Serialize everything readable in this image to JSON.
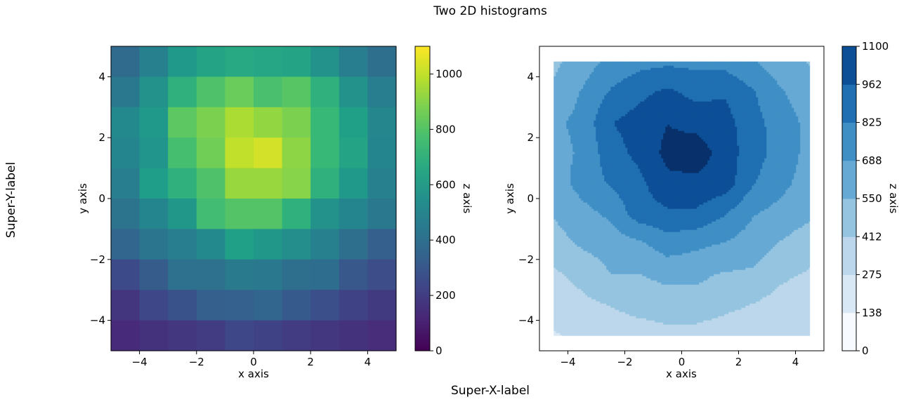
{
  "figure": {
    "suptitle": "Two 2D histograms",
    "supxlabel": "Super-X-label",
    "supylabel": "Super-Y-label"
  },
  "chart_data": [
    {
      "type": "heatmap",
      "title": "",
      "xlabel": "x axis",
      "ylabel": "y axis",
      "colorbar_label": "z axis",
      "colormap": "viridis",
      "xlim": [
        -5,
        5
      ],
      "ylim": [
        -5,
        5
      ],
      "x_ticks": [
        -4,
        -2,
        0,
        2,
        4
      ],
      "y_ticks": [
        -4,
        -2,
        0,
        2,
        4
      ],
      "x_edges": [
        -5,
        -4,
        -3,
        -2,
        -1,
        0,
        1,
        2,
        3,
        4,
        5
      ],
      "y_edges": [
        -5,
        -4,
        -3,
        -2,
        -1,
        0,
        1,
        2,
        3,
        4,
        5
      ],
      "color_range": [
        0,
        1100
      ],
      "colorbar_ticks": [
        0,
        200,
        400,
        600,
        800,
        1000
      ],
      "rows_top_to_bottom": [
        [
          380,
          480,
          590,
          640,
          660,
          650,
          640,
          560,
          470,
          400
        ],
        [
          440,
          560,
          700,
          790,
          850,
          780,
          810,
          700,
          560,
          470
        ],
        [
          520,
          590,
          820,
          880,
          960,
          920,
          880,
          740,
          620,
          510
        ],
        [
          500,
          570,
          770,
          860,
          1000,
          1030,
          910,
          740,
          640,
          500
        ],
        [
          470,
          610,
          700,
          790,
          930,
          930,
          900,
          700,
          590,
          480
        ],
        [
          420,
          500,
          580,
          760,
          800,
          800,
          700,
          560,
          500,
          440
        ],
        [
          360,
          430,
          470,
          520,
          620,
          580,
          540,
          480,
          400,
          330
        ],
        [
          250,
          320,
          410,
          410,
          450,
          440,
          400,
          390,
          300,
          260
        ],
        [
          170,
          240,
          280,
          330,
          340,
          360,
          310,
          270,
          220,
          190
        ],
        [
          130,
          160,
          180,
          200,
          240,
          220,
          200,
          180,
          160,
          140
        ]
      ]
    },
    {
      "type": "contour",
      "title": "",
      "xlabel": "x axis",
      "ylabel": "y axis",
      "colorbar_label": "z axis",
      "colormap": "Blues",
      "xlim": [
        -5,
        5
      ],
      "ylim": [
        -5,
        5
      ],
      "x_ticks": [
        -4,
        -2,
        0,
        2,
        4
      ],
      "y_ticks": [
        -4,
        -2,
        0,
        2,
        4
      ],
      "levels": [
        0,
        138,
        275,
        412,
        550,
        688,
        825,
        962,
        1100
      ],
      "level_labels": [
        "0",
        "138",
        "275",
        "412",
        "550",
        "688",
        "825",
        "962",
        "1100"
      ],
      "bin_centers": [
        -4.5,
        -3.5,
        -2.5,
        -1.5,
        -0.5,
        0.5,
        1.5,
        2.5,
        3.5,
        4.5
      ],
      "rows_top_to_bottom": [
        [
          380,
          480,
          590,
          640,
          660,
          650,
          640,
          560,
          470,
          400
        ],
        [
          440,
          560,
          700,
          790,
          850,
          780,
          810,
          700,
          560,
          470
        ],
        [
          520,
          590,
          820,
          880,
          960,
          920,
          880,
          740,
          620,
          510
        ],
        [
          500,
          570,
          770,
          860,
          1000,
          1030,
          910,
          740,
          640,
          500
        ],
        [
          470,
          610,
          700,
          790,
          930,
          930,
          900,
          700,
          590,
          480
        ],
        [
          420,
          500,
          580,
          760,
          800,
          800,
          700,
          560,
          500,
          440
        ],
        [
          360,
          430,
          470,
          520,
          620,
          580,
          540,
          480,
          400,
          330
        ],
        [
          250,
          320,
          410,
          410,
          450,
          440,
          400,
          390,
          300,
          260
        ],
        [
          170,
          240,
          280,
          330,
          340,
          360,
          310,
          270,
          220,
          190
        ],
        [
          130,
          160,
          180,
          200,
          240,
          220,
          200,
          180,
          160,
          140
        ]
      ],
      "band_colors": [
        "#f7fbff",
        "#d9e8f5",
        "#bcd7eb",
        "#94c4df",
        "#67a9d5",
        "#3f8fc5",
        "#1f6fb2",
        "#0c4f97",
        "#08306b"
      ]
    }
  ]
}
